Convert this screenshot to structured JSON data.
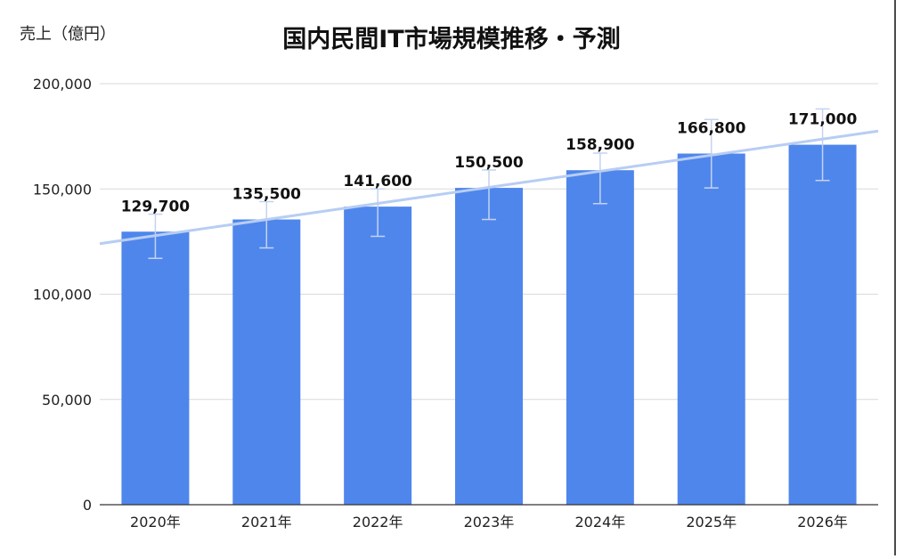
{
  "chart_data": {
    "type": "bar",
    "title": "国内民間IT市場規模推移・予測",
    "ylabel": "売上（億円）",
    "xlabel": "",
    "categories": [
      "2020年",
      "2021年",
      "2022年",
      "2023年",
      "2024年",
      "2025年",
      "2026年"
    ],
    "values": [
      129700,
      135500,
      141600,
      150500,
      158900,
      166800,
      171000
    ],
    "data_labels": [
      "129,700",
      "135,500",
      "141,600",
      "150,500",
      "158,900",
      "166,800",
      "171,000"
    ],
    "error_bars": [
      [
        117000,
        138000
      ],
      [
        122000,
        144000
      ],
      [
        127500,
        150000
      ],
      [
        135500,
        159000
      ],
      [
        143000,
        167000
      ],
      [
        150500,
        183000
      ],
      [
        154000,
        188000
      ]
    ],
    "trendline": {
      "type": "linear",
      "start": [
        2019.5,
        124000
      ],
      "end": [
        2026.5,
        177500
      ]
    },
    "ylim": [
      0,
      200000
    ],
    "yticks": [
      0,
      50000,
      100000,
      150000,
      200000
    ],
    "ytick_labels": [
      "0",
      "50,000",
      "100,000",
      "150,000",
      "200,000"
    ],
    "grid": true,
    "colors": {
      "bar": "#4f86ec",
      "trendline": "#b7cdf3",
      "error_bar": "#c3d3ef",
      "grid": "#d9d9d9",
      "axis": "#333333"
    }
  }
}
